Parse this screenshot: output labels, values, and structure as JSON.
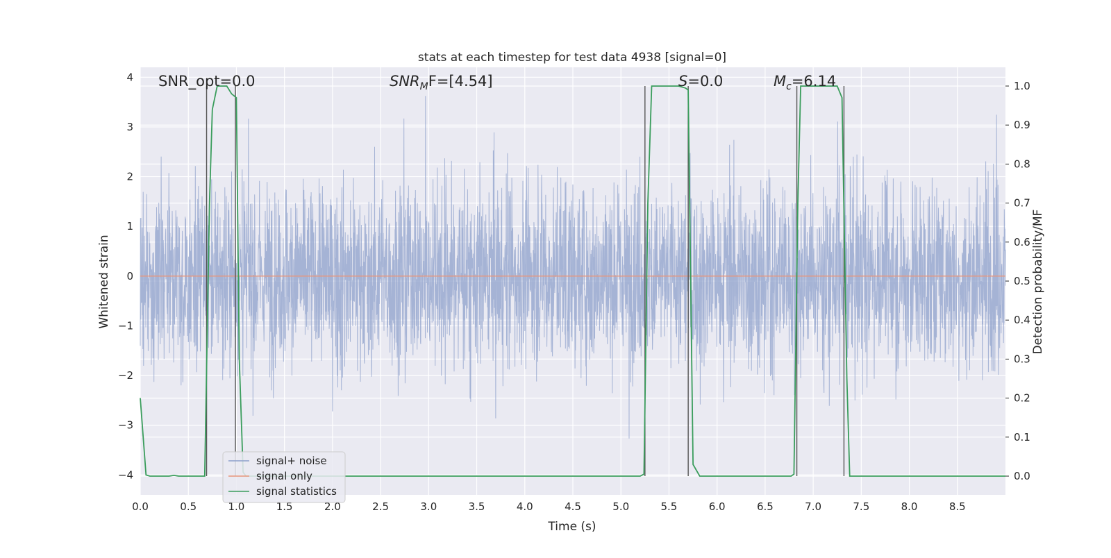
{
  "chart_data": {
    "type": "line",
    "title": "stats at each timestep for test data 4938 [signal=0]",
    "xlabel": "Time (s)",
    "ylabel": "Whitened strain",
    "ylabel_right": "Detection probability/MF",
    "xlim": [
      0.0,
      9.0
    ],
    "ylim": [
      -4.4,
      4.2
    ],
    "ylim_right": [
      -0.048,
      1.048
    ],
    "x_ticks": [
      "0.0",
      "0.5",
      "1.0",
      "1.5",
      "2.0",
      "2.5",
      "3.0",
      "3.5",
      "4.0",
      "4.5",
      "5.0",
      "5.5",
      "6.0",
      "6.5",
      "7.0",
      "7.5",
      "8.0",
      "8.5"
    ],
    "y_ticks": [
      "−4",
      "−3",
      "−2",
      "−1",
      "0",
      "1",
      "2",
      "3",
      "4"
    ],
    "y_right_ticks": [
      "0.0",
      "0.1",
      "0.2",
      "0.3",
      "0.4",
      "0.5",
      "0.6",
      "0.7",
      "0.8",
      "0.9",
      "1.0"
    ],
    "grid": true,
    "legend_position": "lower-left",
    "annotations": {
      "snr_opt": "SNR_opt=0.0",
      "snr_mf_main": "SNR",
      "snr_mf_sub": "M",
      "snr_mf_rest": "F=[4.54]",
      "s_main": "S",
      "s_rest": "=0.0",
      "mc_main": "M",
      "mc_sub": "c",
      "mc_rest": "=6.14"
    },
    "series": [
      {
        "name": "signal+ noise",
        "color": "#8da0cb",
        "kind": "whitened noise, amplitude about ±2 typical, peaks near ±3.7"
      },
      {
        "name": "signal only",
        "color": "#e8957a",
        "x": [
          0.0,
          9.0
        ],
        "y": [
          0.0,
          0.0
        ]
      },
      {
        "name": "signal statistics",
        "color": "#3a9d5c",
        "axis": "right",
        "x": [
          0.0,
          0.06,
          0.1,
          0.15,
          0.3,
          0.35,
          0.4,
          0.67,
          0.72,
          0.75,
          0.8,
          0.9,
          0.95,
          1.0,
          1.03,
          1.07,
          1.1,
          5.2,
          5.24,
          5.28,
          5.32,
          5.6,
          5.67,
          5.7,
          5.75,
          5.82,
          6.7,
          6.77,
          6.8,
          6.84,
          6.87,
          7.25,
          7.3,
          7.35,
          7.38,
          9.0
        ],
        "y": [
          0.2,
          0.003,
          0.0,
          0.0,
          0.0,
          0.002,
          0.0,
          0.0,
          0.7,
          0.94,
          1.0,
          1.0,
          0.98,
          0.97,
          0.3,
          0.01,
          0.0,
          0.0,
          0.005,
          0.7,
          1.0,
          1.0,
          0.995,
          0.99,
          0.03,
          0.0,
          0.0,
          0.0,
          0.005,
          0.7,
          1.0,
          1.0,
          0.97,
          0.25,
          0.0,
          0.0
        ]
      }
    ],
    "vlines": [
      0.69,
      0.99,
      5.25,
      5.7,
      6.83,
      7.32
    ]
  }
}
